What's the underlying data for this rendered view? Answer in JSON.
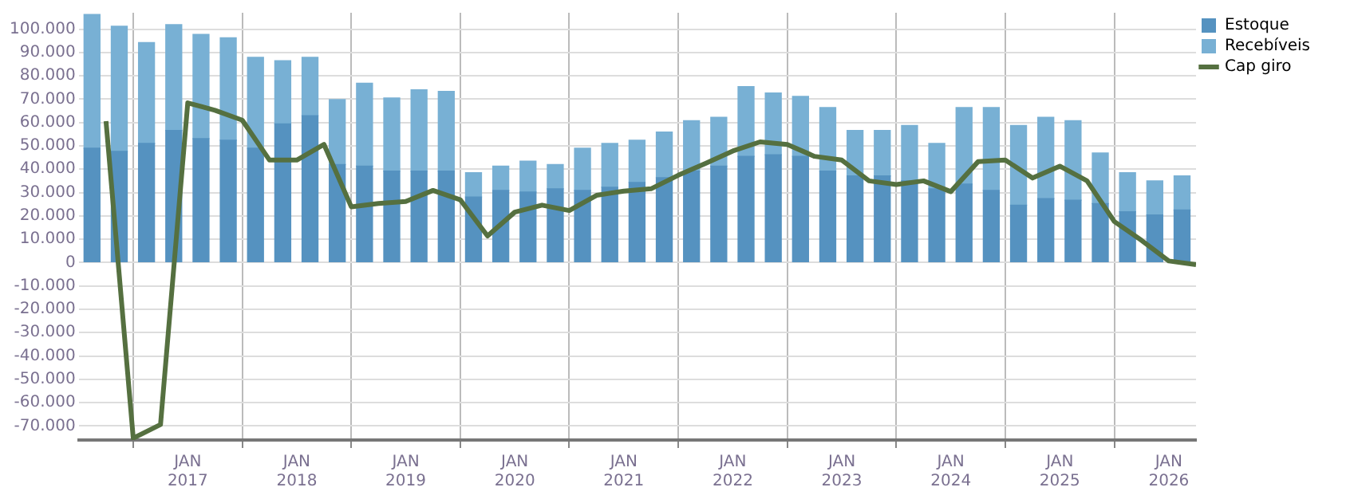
{
  "chart_data": {
    "type": "bar",
    "stacked": true,
    "legend": "right",
    "grid": true,
    "marker": "none",
    "line_style": "solid",
    "x": [
      "2016-02-15",
      "2016-05-15",
      "2016-08-15",
      "2016-11-15",
      "2017-02-15",
      "2017-05-15",
      "2017-08-15",
      "2017-11-15",
      "2018-02-15",
      "2018-05-15",
      "2018-08-15",
      "2018-11-15",
      "2019-02-15",
      "2019-05-15",
      "2019-08-15",
      "2019-11-15",
      "2020-02-15",
      "2020-05-15",
      "2020-08-15",
      "2020-11-15",
      "2021-02-15",
      "2021-05-15",
      "2021-08-15",
      "2021-11-15",
      "2022-02-15",
      "2022-05-15",
      "2022-08-15",
      "2022-11-15",
      "2023-02-15",
      "2023-05-15",
      "2023-08-15",
      "2023-11-15",
      "2024-02-15",
      "2024-05-15",
      "2024-08-15",
      "2024-11-15",
      "2025-02-15",
      "2025-05-15",
      "2025-08-15",
      "2025-11-15",
      "2026-02-15"
    ],
    "series": [
      {
        "name": "Estoque",
        "color": "#5592c0",
        "values": [
          49000,
          47600,
          51000,
          56600,
          53100,
          52400,
          49000,
          59400,
          62900,
          42000,
          41300,
          39200,
          39200,
          39200,
          28100,
          30900,
          30200,
          31600,
          30900,
          32300,
          34300,
          36400,
          39200,
          41300,
          45500,
          46200,
          45500,
          39200,
          37100,
          37100,
          35000,
          31600,
          33600,
          30900,
          24600,
          27400,
          26700,
          25300,
          21800,
          20400,
          22500
        ]
      },
      {
        "name": "Recebíveis",
        "color": "#78b0d4",
        "values": [
          57300,
          53600,
          43200,
          45300,
          44600,
          43900,
          38900,
          27100,
          25000,
          27800,
          35500,
          31300,
          34800,
          34100,
          10400,
          10400,
          13200,
          10400,
          18100,
          18700,
          18100,
          19500,
          21600,
          20900,
          29900,
          26400,
          25700,
          27200,
          19500,
          19500,
          23700,
          19400,
          32800,
          35500,
          34100,
          34800,
          34100,
          21600,
          16700,
          14600,
          14600
        ]
      },
      {
        "name": "Cap giro",
        "type": "line",
        "color": "#557040",
        "x": [
          "2016-04",
          "2016-07",
          "2016-10",
          "2017-01",
          "2017-04",
          "2017-07",
          "2017-10",
          "2018-01",
          "2018-04",
          "2018-07",
          "2018-10",
          "2019-01",
          "2019-04",
          "2019-07",
          "2019-10",
          "2020-01",
          "2020-04",
          "2020-07",
          "2020-10",
          "2021-01",
          "2021-04",
          "2021-07",
          "2021-10",
          "2022-01",
          "2022-04",
          "2022-07",
          "2022-10",
          "2023-01",
          "2023-04",
          "2023-07",
          "2023-10",
          "2024-01",
          "2024-04",
          "2024-07",
          "2024-10",
          "2025-01",
          "2025-04",
          "2025-07",
          "2025-10",
          "2026-01",
          "2026-04"
        ],
        "values": [
          60600,
          -75200,
          -69400,
          68400,
          65200,
          61000,
          43900,
          43900,
          50600,
          23900,
          25300,
          26200,
          30900,
          26900,
          11400,
          21600,
          24600,
          22300,
          28800,
          30600,
          31600,
          37400,
          42500,
          47800,
          51700,
          50600,
          45500,
          43900,
          35000,
          33400,
          35000,
          30400,
          43200,
          43900,
          36200,
          41300,
          35000,
          17600,
          9500,
          700,
          -900
        ]
      }
    ],
    "xlim": [
      "2016-01",
      "2026-04"
    ],
    "xticks": [
      {
        "value": "2017-01",
        "label": "JAN 2017"
      },
      {
        "value": "2018-01",
        "label": "JAN 2018"
      },
      {
        "value": "2019-01",
        "label": "JAN 2019"
      },
      {
        "value": "2020-01",
        "label": "JAN 2020"
      },
      {
        "value": "2021-01",
        "label": "JAN 2021"
      },
      {
        "value": "2022-01",
        "label": "JAN 2022"
      },
      {
        "value": "2023-01",
        "label": "JAN 2023"
      },
      {
        "value": "2024-01",
        "label": "JAN 2024"
      },
      {
        "value": "2025-01",
        "label": "JAN 2025"
      },
      {
        "value": "2026-01",
        "label": "JAN 2026"
      }
    ],
    "ylim": [
      -76000,
      107000
    ],
    "yticks": [
      {
        "value": -70000,
        "label": "-70.000"
      },
      {
        "value": -60000,
        "label": "-60.000"
      },
      {
        "value": -50000,
        "label": "-50.000"
      },
      {
        "value": -40000,
        "label": "-40.000"
      },
      {
        "value": -30000,
        "label": "-30.000"
      },
      {
        "value": -20000,
        "label": "-20.000"
      },
      {
        "value": -10000,
        "label": "-10.000"
      },
      0,
      {
        "value": 10000,
        "label": "10.000"
      },
      {
        "value": 20000,
        "label": "20.000"
      },
      {
        "value": 30000,
        "label": "30.000"
      },
      {
        "value": 40000,
        "label": "40.000"
      },
      {
        "value": 50000,
        "label": "50.000"
      },
      {
        "value": 60000,
        "label": "60.000"
      },
      {
        "value": 70000,
        "label": "70.000"
      },
      {
        "value": 80000,
        "label": "80.000"
      },
      {
        "value": 90000,
        "label": "90.000"
      },
      {
        "value": 100000,
        "label": "100.000"
      }
    ]
  }
}
